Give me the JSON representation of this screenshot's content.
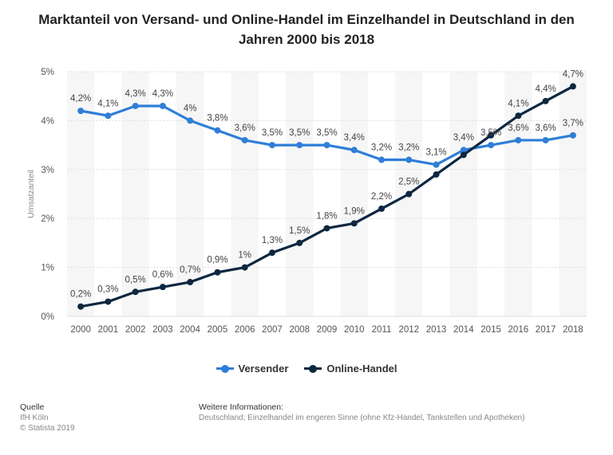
{
  "chart_data": {
    "type": "line",
    "title": "Marktanteil von Versand- und Online-Handel im Einzelhandel in Deutschland in den Jahren 2000 bis 2018",
    "xlabel": "",
    "ylabel": "Umsatzanteil",
    "ylim": [
      0,
      5
    ],
    "y_ticks": [
      "0%",
      "1%",
      "2%",
      "3%",
      "4%",
      "5%"
    ],
    "categories": [
      "2000",
      "2001",
      "2002",
      "2003",
      "2004",
      "2005",
      "2006",
      "2007",
      "2008",
      "2009",
      "2010",
      "2011",
      "2012",
      "2013",
      "2014",
      "2015",
      "2016",
      "2017",
      "2018"
    ],
    "series": [
      {
        "name": "Versender",
        "color": "#2f7ed8",
        "values": [
          4.2,
          4.1,
          4.3,
          4.3,
          4.0,
          3.8,
          3.6,
          3.5,
          3.5,
          3.5,
          3.4,
          3.2,
          3.2,
          3.1,
          3.4,
          3.5,
          3.6,
          3.6,
          3.7
        ],
        "labels": [
          "4,2%",
          "4,1%",
          "4,3%",
          "4,3%",
          "4%",
          "3,8%",
          "3,6%",
          "3,5%",
          "3,5%",
          "3,5%",
          "3,4%",
          "3,2%",
          "3,2%",
          "3,1%",
          "3,4%",
          "3,5%",
          "3,6%",
          "3,6%",
          "3,7%"
        ]
      },
      {
        "name": "Online-Handel",
        "color": "#0d2740",
        "values": [
          0.2,
          0.3,
          0.5,
          0.6,
          0.7,
          0.9,
          1.0,
          1.3,
          1.5,
          1.8,
          1.9,
          2.2,
          2.5,
          2.9,
          3.3,
          3.7,
          4.1,
          4.4,
          4.7
        ],
        "labels": [
          "0,2%",
          "0,3%",
          "0,5%",
          "0,6%",
          "0,7%",
          "0,9%",
          "1%",
          "1,3%",
          "1,5%",
          "1,8%",
          "1,9%",
          "2,2%",
          "2,5%",
          "",
          "",
          "",
          "4,1%",
          "4,4%",
          "4,7%"
        ]
      }
    ],
    "grid": true,
    "legend": "bottom-center"
  },
  "footer": {
    "source_title": "Quelle",
    "source_lines": [
      "IfH Köln",
      "© Statista 2019"
    ],
    "info_title": "Weitere Informationen:",
    "info_text": "Deutschland; Einzelhandel im engeren Sinne (ohne Kfz-Handel, Tankstellen und Apotheken)"
  }
}
